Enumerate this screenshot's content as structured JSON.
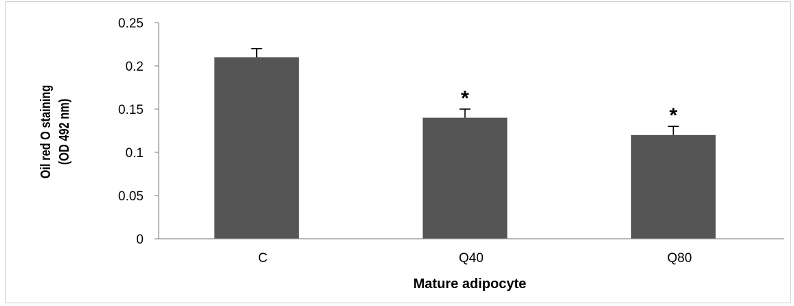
{
  "chart_data": {
    "type": "bar",
    "categories": [
      "C",
      "Q40",
      "Q80"
    ],
    "values": [
      0.21,
      0.14,
      0.12
    ],
    "errors": [
      0.01,
      0.01,
      0.01
    ],
    "annotations": [
      "",
      "*",
      "*"
    ],
    "ylim": [
      0,
      0.25
    ],
    "yticks": [
      "0",
      "0.05",
      "0.1",
      "0.15",
      "0.2",
      "0.25"
    ],
    "ylabel_line1": "Oil red O staining",
    "ylabel_line2": "(OD 492 nm)",
    "xlabel": "Mature adipocyte",
    "bar_color": "#555555",
    "grid": false
  }
}
